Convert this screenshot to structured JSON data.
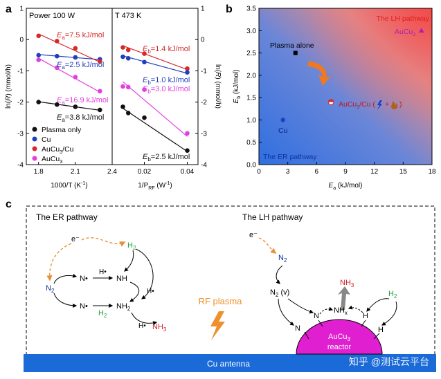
{
  "panel_labels": {
    "a": "a",
    "b": "b",
    "c": "c"
  },
  "chart_data": [
    {
      "type": "scatter",
      "id": "a-left",
      "title": "Power 100 W",
      "xlabel": "1000/T (K",
      "xlabel_sup": "-1",
      "xlabel_close": ")",
      "ylabel": "ln(R) (mmol/h)",
      "xlim": [
        1.7,
        2.4
      ],
      "ylim": [
        -4,
        1
      ],
      "xticks": [
        1.8,
        2.1,
        2.4
      ],
      "xtick_labels": [
        "1.8",
        "2.1",
        "2.4"
      ],
      "yticks": [
        1,
        0,
        -1,
        -2,
        -3,
        -4
      ],
      "ytick_labels": [
        "1",
        "0",
        "-1",
        "-2",
        "-3",
        "-4"
      ],
      "series": [
        {
          "name": "Plasma only",
          "color": "#111111",
          "x": [
            1.8,
            1.95,
            2.1,
            2.3
          ],
          "y": [
            -2.0,
            -2.08,
            -2.15,
            -2.25
          ],
          "fit": [
            -1.99,
            -2.26
          ]
        },
        {
          "name": "Cu",
          "color": "#1f3fbf",
          "x": [
            1.8,
            1.95,
            2.1,
            2.3
          ],
          "y": [
            -0.5,
            -0.53,
            -0.57,
            -0.63
          ],
          "fit": [
            -0.48,
            -0.64
          ]
        },
        {
          "name": "AuCu3/Cu",
          "color": "#d62a2a",
          "x": [
            1.8,
            1.95,
            2.1,
            2.3
          ],
          "y": [
            0.12,
            -0.05,
            -0.28,
            -0.7
          ],
          "fit": [
            0.18,
            -0.72
          ]
        },
        {
          "name": "AuCu3",
          "color": "#e040e0",
          "x": [
            1.8,
            1.95,
            2.1,
            2.3
          ],
          "y": [
            -0.65,
            -0.9,
            -1.2,
            -1.65
          ],
          "fit": [
            -0.6,
            -1.68
          ]
        }
      ],
      "annotations": [
        {
          "sym": "E",
          "sub": "a",
          "value": "=7.5 kJ/mol",
          "color": "#d62a2a"
        },
        {
          "sym": "E",
          "sub": "a",
          "value": "=2.5 kJ/mol",
          "color": "#1f3fbf"
        },
        {
          "sym": "E",
          "sub": "a",
          "value": "=16.9 kJ/mol",
          "color": "#e040e0"
        },
        {
          "sym": "E",
          "sub": "a",
          "value": "=3.8 kJ/mol",
          "color": "#111111"
        }
      ],
      "legend": [
        {
          "label": "Plasma only",
          "color": "#111111"
        },
        {
          "label": "Cu",
          "color": "#1f3fbf"
        },
        {
          "label": "AuCu",
          "sub": "3",
          "tail": "/Cu",
          "color": "#d62a2a"
        },
        {
          "label": "AuCu",
          "sub": "3",
          "tail": "",
          "color": "#e040e0"
        }
      ]
    },
    {
      "type": "scatter",
      "id": "a-right",
      "title": "T 473 K",
      "xlabel": "1/P",
      "xlabel_sub": "RF",
      "xlabel_tail": " (W",
      "xlabel_sup": "-1",
      "xlabel_close": ")",
      "ylabel": "ln(R) (mmol/h)",
      "xlim": [
        0.005,
        0.045
      ],
      "ylim": [
        -4,
        1
      ],
      "xticks": [
        0.02,
        0.04
      ],
      "xtick_labels": [
        "0.02",
        "0.04"
      ],
      "yticks": [
        1,
        0,
        -1,
        -2,
        -3,
        -4
      ],
      "ytick_labels": [
        "1",
        "0",
        "-1",
        "-2",
        "-3",
        "-4"
      ],
      "series": [
        {
          "name": "AuCu3/Cu",
          "color": "#d62a2a",
          "x": [
            0.01,
            0.0125,
            0.02,
            0.04
          ],
          "y": [
            -0.25,
            -0.33,
            -0.45,
            -0.93
          ],
          "fit": [
            -0.2,
            -0.96
          ]
        },
        {
          "name": "Cu",
          "color": "#1f3fbf",
          "x": [
            0.01,
            0.0125,
            0.02,
            0.04
          ],
          "y": [
            -0.55,
            -0.6,
            -0.72,
            -1.05
          ],
          "fit": [
            -0.52,
            -1.08
          ]
        },
        {
          "name": "AuCu3",
          "color": "#e040e0",
          "x": [
            0.01,
            0.0125,
            0.02,
            0.04
          ],
          "y": [
            -1.5,
            -1.52,
            -1.6,
            -3.0
          ],
          "fit": [
            -1.35,
            -3.1
          ]
        },
        {
          "name": "Plasma only",
          "color": "#111111",
          "x": [
            0.01,
            0.0125,
            0.02,
            0.04
          ],
          "y": [
            -2.15,
            -2.35,
            -2.5,
            -3.55
          ],
          "fit": [
            -2.2,
            -3.58
          ]
        }
      ],
      "annotations": [
        {
          "sym": "E",
          "sub": "b",
          "value": "=1.4 kJ/mol",
          "color": "#d62a2a"
        },
        {
          "sym": "E",
          "sub": "b",
          "value": "=1.0 kJ/mol",
          "color": "#1f3fbf"
        },
        {
          "sym": "E",
          "sub": "b",
          "value": "=3.0 kJ/mol",
          "color": "#e040e0"
        },
        {
          "sym": "E",
          "sub": "b",
          "value": "=2.5 kJ/mol",
          "color": "#111111"
        }
      ]
    },
    {
      "type": "scatter",
      "id": "b",
      "xlabel": "E",
      "xlabel_sub": "a",
      "xlabel_tail": " (kJ/mol)",
      "ylabel": "E",
      "ylabel_sub": "b",
      "ylabel_tail": " (kJ/mol)",
      "xlim": [
        0,
        18
      ],
      "ylim": [
        0,
        3.5
      ],
      "xticks": [
        0,
        3,
        6,
        9,
        12,
        15,
        18
      ],
      "xtick_labels": [
        "0",
        "3",
        "6",
        "9",
        "12",
        "15",
        "18"
      ],
      "yticks": [
        0,
        0.5,
        1,
        1.5,
        2,
        2.5,
        3,
        3.5
      ],
      "ytick_labels": [
        "0.0",
        "0.5",
        "1.0",
        "1.5",
        "2.0",
        "2.5",
        "3.0",
        "3.5"
      ],
      "points": [
        {
          "name": "Plasma alone",
          "x": 3.8,
          "y": 2.5,
          "marker": "square",
          "color": "#000000"
        },
        {
          "name": "Cu",
          "x": 2.5,
          "y": 1.0,
          "marker": "circle",
          "color": "#1f3fbf"
        },
        {
          "name": "AuCu3/Cu",
          "x": 7.5,
          "y": 1.4,
          "marker": "halfcircle",
          "color": "#d62a2a"
        },
        {
          "name": "AuCu3",
          "x": 16.9,
          "y": 3.0,
          "marker": "triangle",
          "color": "#b020b0"
        }
      ],
      "labels": {
        "plasma": "Plasma alone",
        "cu": "Cu",
        "aucu3_cu": "AuCu",
        "aucu3_cu_sub": "3",
        "aucu3_cu_tail": "/Cu (",
        "plus": "+",
        "close": ")",
        "aucu3": "AuCu",
        "aucu3_sub": "3",
        "lh_region": "The LH pathway",
        "er_region": "The ER pathway"
      }
    }
  ],
  "schematic": {
    "er_title": "The ER pathway",
    "lh_title": "The LH pathway",
    "rf_plasma": "RF plasma",
    "antenna": "Cu antenna",
    "reactor_line1": "AuCu",
    "reactor_sub": "3",
    "reactor_line2": "reactor",
    "watermark": "知乎 @测试云平台",
    "er": {
      "electron": "e⁻",
      "h2_top": "H",
      "h2_top_sub": "2",
      "n2": "N",
      "n2_sub": "2",
      "n_top": "N•",
      "h_dot_1": "H•",
      "nh": "NH",
      "h_dot_2": "H•",
      "n_bottom": "N•",
      "h2_mid": "H",
      "h2_mid_sub": "2",
      "nh2": "NH",
      "nh2_sub": "2",
      "h_dot_3": "H•",
      "nh3": "NH",
      "nh3_sub": "3"
    },
    "lh": {
      "electron": "e⁻",
      "n2": "N",
      "n2_sub": "2",
      "n2v": "N",
      "n2v_sub": "2",
      "n2v_tail": " (v)",
      "nh3": "NH",
      "nh3_sub": "3",
      "nhx": "NH",
      "nhx_sub": "x",
      "h2": "H",
      "h2_sub": "2",
      "n1": "N",
      "n2site": "N",
      "h1": "H",
      "h2site": "H"
    }
  }
}
